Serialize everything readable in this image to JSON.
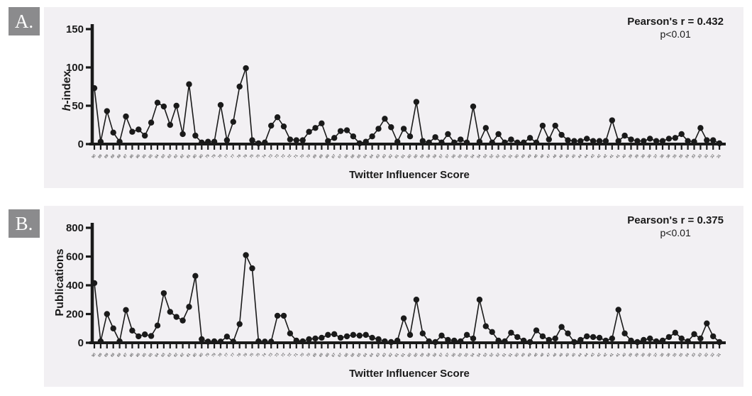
{
  "colors": {
    "panel_bg": "#f2f0f3",
    "badge_bg": "#8b8b8d",
    "ink": "#1a1a1a"
  },
  "panels": [
    {
      "label": "A."
    },
    {
      "label": "B."
    }
  ],
  "chart_data": [
    {
      "type": "line",
      "panel": "A",
      "annotation_line1": "Pearson's r = 0.432",
      "annotation_line2": "p<0.01",
      "xlabel": "Twitter Influencer Score",
      "ylabel": "h-index",
      "ylabel_italic": "h",
      "ylabel_rest": "-index",
      "ylim": [
        0,
        150
      ],
      "yticks": [
        0,
        50,
        100,
        150
      ],
      "grid": false,
      "legend": false,
      "line_color": "#1a1a1a",
      "marker_color": "#1a1a1a",
      "x_tick_labels": [
        90,
        89,
        89,
        88,
        88,
        87,
        86,
        86,
        85,
        85,
        84,
        83,
        83,
        82,
        82,
        81,
        80,
        80,
        79,
        79,
        78,
        77,
        77,
        76,
        76,
        75,
        75,
        74,
        73,
        73,
        72,
        72,
        71,
        70,
        70,
        69,
        69,
        68,
        67,
        67,
        66,
        66,
        65,
        64,
        64,
        63,
        63,
        62,
        61,
        61,
        60,
        60,
        59,
        58,
        58,
        57,
        57,
        56,
        55,
        55,
        54,
        54,
        53,
        52,
        52,
        51,
        51,
        50,
        49,
        49,
        48,
        48,
        47,
        46,
        46,
        45,
        45,
        44,
        44,
        43,
        42,
        42,
        41,
        41,
        40,
        39,
        39,
        38,
        38,
        37,
        36,
        36,
        35,
        35,
        34,
        33,
        33,
        32,
        32,
        31
      ],
      "values": [
        73,
        3,
        43,
        15,
        3,
        36,
        16,
        19,
        11,
        28,
        54,
        49,
        25,
        50,
        13,
        78,
        11,
        2,
        3,
        3,
        51,
        5,
        29,
        75,
        99,
        5,
        1,
        2,
        24,
        35,
        23,
        6,
        5,
        5,
        16,
        21,
        27,
        4,
        8,
        17,
        18,
        10,
        1,
        3,
        10,
        20,
        33,
        22,
        3,
        20,
        10,
        55,
        4,
        2,
        9,
        2,
        13,
        2,
        6,
        2,
        49,
        3,
        21,
        2,
        13,
        2,
        6,
        2,
        2,
        8,
        2,
        24,
        6,
        24,
        12,
        5,
        4,
        4,
        7,
        4,
        4,
        4,
        31,
        4,
        11,
        6,
        4,
        4,
        7,
        4,
        4,
        7,
        8,
        13,
        4,
        3,
        21,
        5,
        5,
        1
      ]
    },
    {
      "type": "line",
      "panel": "B",
      "annotation_line1": "Pearson's r = 0.375",
      "annotation_line2": "p<0.01",
      "xlabel": "Twitter Influencer Score",
      "ylabel": "Publications",
      "ylabel_italic": "",
      "ylabel_rest": "Publications",
      "ylim": [
        0,
        800
      ],
      "yticks": [
        0,
        200,
        400,
        600,
        800
      ],
      "grid": false,
      "legend": false,
      "line_color": "#1a1a1a",
      "marker_color": "#1a1a1a",
      "x_tick_labels": [
        90,
        89,
        89,
        88,
        88,
        87,
        86,
        86,
        85,
        85,
        84,
        83,
        83,
        82,
        82,
        81,
        80,
        80,
        79,
        79,
        78,
        77,
        77,
        76,
        76,
        75,
        75,
        74,
        73,
        73,
        72,
        72,
        71,
        70,
        70,
        69,
        69,
        68,
        67,
        67,
        66,
        66,
        65,
        64,
        64,
        63,
        63,
        62,
        61,
        61,
        60,
        60,
        59,
        58,
        58,
        57,
        57,
        56,
        55,
        55,
        54,
        54,
        53,
        52,
        52,
        51,
        51,
        50,
        49,
        49,
        48,
        48,
        47,
        46,
        46,
        45,
        45,
        44,
        44,
        43,
        42,
        42,
        41,
        41,
        40,
        39,
        39,
        38,
        38,
        37,
        36,
        36,
        35,
        35,
        34,
        33,
        33,
        32,
        32,
        31
      ],
      "values": [
        415,
        10,
        200,
        100,
        10,
        228,
        85,
        45,
        58,
        47,
        120,
        345,
        215,
        180,
        155,
        250,
        465,
        25,
        8,
        10,
        8,
        43,
        8,
        130,
        610,
        518,
        10,
        8,
        8,
        188,
        188,
        65,
        15,
        10,
        25,
        30,
        35,
        55,
        60,
        35,
        45,
        55,
        50,
        55,
        35,
        25,
        10,
        5,
        15,
        170,
        55,
        300,
        65,
        10,
        5,
        50,
        20,
        15,
        10,
        55,
        30,
        300,
        115,
        75,
        15,
        10,
        70,
        40,
        15,
        5,
        86,
        45,
        20,
        30,
        110,
        65,
        5,
        20,
        45,
        40,
        35,
        15,
        30,
        230,
        65,
        15,
        5,
        20,
        30,
        10,
        15,
        40,
        70,
        30,
        10,
        60,
        30,
        135,
        45,
        5
      ]
    }
  ]
}
